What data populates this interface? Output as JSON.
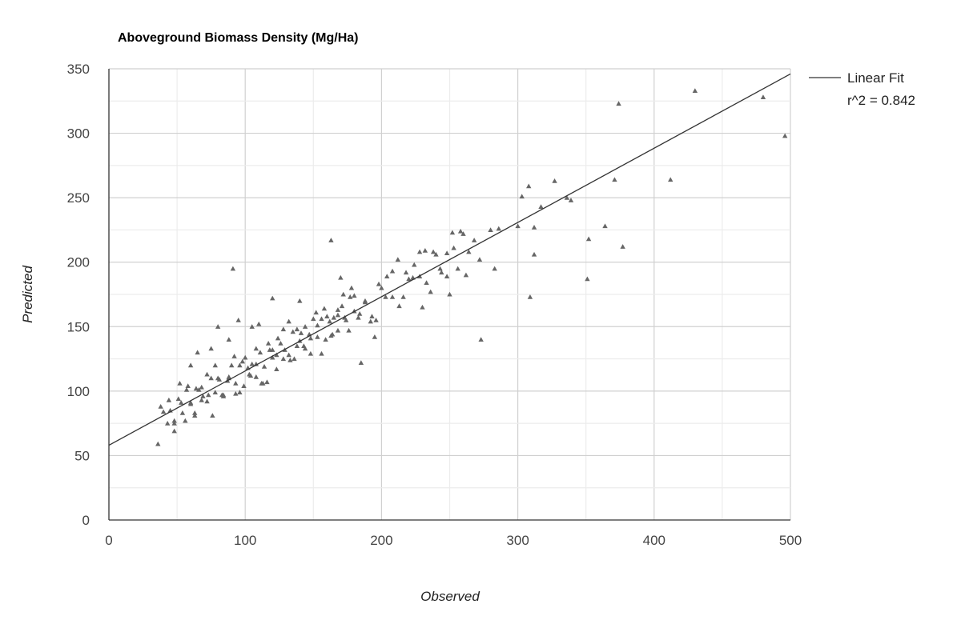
{
  "chart_data": {
    "type": "scatter",
    "title": "Aboveground Biomass Density (Mg/Ha)",
    "xlabel": "Observed",
    "ylabel": "Predicted",
    "xlim": [
      0,
      500
    ],
    "ylim": [
      0,
      350
    ],
    "xticks": [
      0,
      100,
      200,
      300,
      400,
      500
    ],
    "yticks": [
      0,
      50,
      100,
      150,
      200,
      250,
      300,
      350
    ],
    "grid": true,
    "marker": "triangle",
    "colors": {
      "points": "#666666",
      "trendline": "#333333",
      "grid_major": "#d0d0d0",
      "grid_minor": "#ececec"
    },
    "legend": {
      "placement": "right",
      "entries": [
        "Linear Fit",
        "r^2 = 0.842"
      ]
    },
    "trendline": {
      "type": "linear",
      "intercept": 58,
      "slope": 0.576,
      "r2": 0.842
    },
    "points": [
      [
        374,
        323
      ],
      [
        430,
        333
      ],
      [
        480,
        328
      ],
      [
        496,
        298
      ],
      [
        412,
        264
      ],
      [
        371,
        264
      ],
      [
        327,
        263
      ],
      [
        308,
        259
      ],
      [
        303,
        251
      ],
      [
        336,
        250
      ],
      [
        339,
        248
      ],
      [
        317,
        243
      ],
      [
        364,
        228
      ],
      [
        312,
        227
      ],
      [
        300,
        228
      ],
      [
        377,
        212
      ],
      [
        352,
        218
      ],
      [
        312,
        206
      ],
      [
        351,
        187
      ],
      [
        309,
        173
      ],
      [
        273,
        140
      ],
      [
        91,
        195
      ],
      [
        163,
        217
      ],
      [
        36,
        59
      ],
      [
        40,
        84
      ],
      [
        44,
        93
      ],
      [
        48,
        77
      ],
      [
        52,
        106
      ],
      [
        56,
        77
      ],
      [
        60,
        91
      ],
      [
        64,
        102
      ],
      [
        68,
        93
      ],
      [
        72,
        113
      ],
      [
        76,
        81
      ],
      [
        80,
        110
      ],
      [
        84,
        96
      ],
      [
        88,
        111
      ],
      [
        92,
        127
      ],
      [
        96,
        99
      ],
      [
        100,
        126
      ],
      [
        104,
        112
      ],
      [
        108,
        121
      ],
      [
        112,
        106
      ],
      [
        116,
        107
      ],
      [
        120,
        132
      ],
      [
        124,
        141
      ],
      [
        128,
        125
      ],
      [
        132,
        154
      ],
      [
        136,
        125
      ],
      [
        140,
        139
      ],
      [
        144,
        150
      ],
      [
        148,
        141
      ],
      [
        152,
        161
      ],
      [
        156,
        129
      ],
      [
        160,
        158
      ],
      [
        164,
        144
      ],
      [
        168,
        159
      ],
      [
        172,
        175
      ],
      [
        176,
        147
      ],
      [
        180,
        174
      ],
      [
        184,
        160
      ],
      [
        188,
        169
      ],
      [
        192,
        154
      ],
      [
        196,
        155
      ],
      [
        200,
        180
      ],
      [
        204,
        189
      ],
      [
        208,
        173
      ],
      [
        212,
        202
      ],
      [
        216,
        173
      ],
      [
        220,
        187
      ],
      [
        224,
        198
      ],
      [
        228,
        189
      ],
      [
        232,
        209
      ],
      [
        236,
        177
      ],
      [
        240,
        206
      ],
      [
        244,
        192
      ],
      [
        248,
        207
      ],
      [
        252,
        223
      ],
      [
        256,
        195
      ],
      [
        260,
        222
      ],
      [
        264,
        208
      ],
      [
        268,
        217
      ],
      [
        272,
        202
      ],
      [
        280,
        225
      ],
      [
        286,
        226
      ],
      [
        283,
        195
      ],
      [
        38,
        88
      ],
      [
        43,
        75
      ],
      [
        48,
        69
      ],
      [
        53,
        91
      ],
      [
        58,
        104
      ],
      [
        63,
        83
      ],
      [
        68,
        103
      ],
      [
        73,
        97
      ],
      [
        78,
        120
      ],
      [
        83,
        97
      ],
      [
        88,
        110
      ],
      [
        93,
        98
      ],
      [
        98,
        123
      ],
      [
        103,
        113
      ],
      [
        108,
        133
      ],
      [
        113,
        106
      ],
      [
        118,
        132
      ],
      [
        123,
        128
      ],
      [
        128,
        148
      ],
      [
        133,
        124
      ],
      [
        138,
        148
      ],
      [
        143,
        135
      ],
      [
        148,
        129
      ],
      [
        153,
        151
      ],
      [
        158,
        164
      ],
      [
        163,
        143
      ],
      [
        168,
        163
      ],
      [
        173,
        157
      ],
      [
        178,
        180
      ],
      [
        183,
        157
      ],
      [
        188,
        170
      ],
      [
        193,
        158
      ],
      [
        198,
        183
      ],
      [
        203,
        173
      ],
      [
        208,
        193
      ],
      [
        213,
        166
      ],
      [
        218,
        192
      ],
      [
        223,
        188
      ],
      [
        228,
        208
      ],
      [
        233,
        184
      ],
      [
        238,
        208
      ],
      [
        243,
        195
      ],
      [
        248,
        189
      ],
      [
        253,
        211
      ],
      [
        258,
        224
      ],
      [
        45,
        85
      ],
      [
        48,
        75
      ],
      [
        51,
        94
      ],
      [
        54,
        83
      ],
      [
        57,
        101
      ],
      [
        60,
        90
      ],
      [
        63,
        81
      ],
      [
        66,
        101
      ],
      [
        69,
        96
      ],
      [
        72,
        92
      ],
      [
        75,
        110
      ],
      [
        78,
        99
      ],
      [
        81,
        109
      ],
      [
        84,
        97
      ],
      [
        87,
        108
      ],
      [
        90,
        120
      ],
      [
        93,
        106
      ],
      [
        96,
        120
      ],
      [
        99,
        104
      ],
      [
        102,
        118
      ],
      [
        105,
        121
      ],
      [
        108,
        111
      ],
      [
        111,
        130
      ],
      [
        114,
        119
      ],
      [
        117,
        137
      ],
      [
        120,
        126
      ],
      [
        123,
        117
      ],
      [
        126,
        137
      ],
      [
        129,
        132
      ],
      [
        132,
        128
      ],
      [
        135,
        146
      ],
      [
        138,
        135
      ],
      [
        141,
        145
      ],
      [
        144,
        133
      ],
      [
        147,
        144
      ],
      [
        150,
        156
      ],
      [
        153,
        142
      ],
      [
        156,
        156
      ],
      [
        159,
        140
      ],
      [
        162,
        154
      ],
      [
        165,
        157
      ],
      [
        168,
        147
      ],
      [
        171,
        166
      ],
      [
        174,
        155
      ],
      [
        177,
        173
      ],
      [
        180,
        162
      ],
      [
        80,
        150
      ],
      [
        88,
        140
      ],
      [
        65,
        130
      ],
      [
        105,
        150
      ],
      [
        120,
        172
      ],
      [
        140,
        170
      ],
      [
        95,
        155
      ],
      [
        185,
        122
      ],
      [
        195,
        142
      ],
      [
        230,
        165
      ],
      [
        250,
        175
      ],
      [
        262,
        190
      ],
      [
        170,
        188
      ],
      [
        110,
        152
      ],
      [
        60,
        120
      ],
      [
        75,
        133
      ]
    ]
  }
}
